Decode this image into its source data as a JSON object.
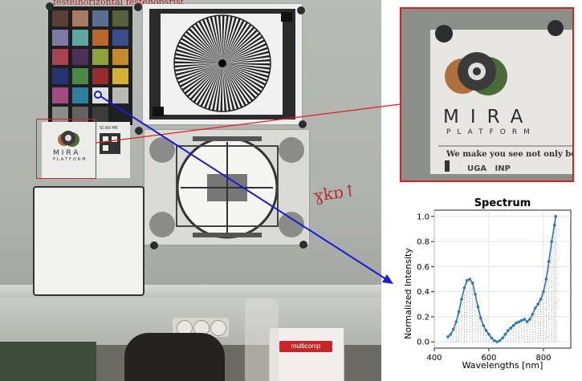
{
  "scene": {
    "top_labels": "festelhorizontal   festehopsrist",
    "mira_logo_text": "MIRA",
    "mira_platform_text": "PLATFORM",
    "mira_tagline": "We make you see not only be",
    "scan_me": "SCAN ME",
    "partner_logos": "UGA   INP",
    "box_brand": "multicomp",
    "red_scribble": "ɣkɒ↑"
  },
  "colors": {
    "selection": "#e11d1d",
    "arrow": "#1a1adb",
    "spectrum_line": "#2e77b0"
  },
  "colorchecker_colors": [
    "#5a3f35",
    "#a87a66",
    "#5a6f8d",
    "#56613a",
    "#7c7ba6",
    "#5fa6a1",
    "#b9672a",
    "#3a4d8c",
    "#a94352",
    "#4e2f56",
    "#8fa23a",
    "#c78a2a",
    "#27336e",
    "#4a8a45",
    "#962c2e",
    "#d3b233",
    "#a14a83",
    "#2f7fa0",
    "#e0e0dc",
    "#b8b8b4",
    "#8c8c88",
    "#626260",
    "#3c3c3a",
    "#202020"
  ],
  "chart_data": {
    "type": "line",
    "title": "Spectrum",
    "xlabel": "Wavelengths [nm]",
    "ylabel": "Normalized Intensity",
    "xlim": [
      400,
      900
    ],
    "ylim": [
      -0.05,
      1.05
    ],
    "xticks": [
      400,
      600,
      800
    ],
    "yticks": [
      0.0,
      0.2,
      0.4,
      0.6,
      0.8,
      1.0
    ],
    "grid": true,
    "series": [
      {
        "x": [
          450,
          460,
          470,
          480,
          490,
          500,
          510,
          520,
          530,
          540,
          550,
          560,
          570,
          580,
          590,
          600,
          610,
          620,
          630,
          640,
          650,
          660,
          670,
          680,
          690,
          700,
          710,
          720,
          730,
          740,
          750,
          760,
          770,
          780,
          790,
          800,
          810,
          820,
          830,
          840,
          845
        ],
        "y": [
          0.04,
          0.06,
          0.1,
          0.16,
          0.24,
          0.34,
          0.43,
          0.49,
          0.5,
          0.47,
          0.38,
          0.28,
          0.19,
          0.13,
          0.09,
          0.06,
          0.03,
          0.01,
          0.0,
          0.01,
          0.03,
          0.06,
          0.09,
          0.11,
          0.13,
          0.15,
          0.16,
          0.17,
          0.18,
          0.16,
          0.18,
          0.22,
          0.27,
          0.3,
          0.34,
          0.4,
          0.5,
          0.64,
          0.8,
          0.93,
          1.0
        ]
      }
    ]
  }
}
